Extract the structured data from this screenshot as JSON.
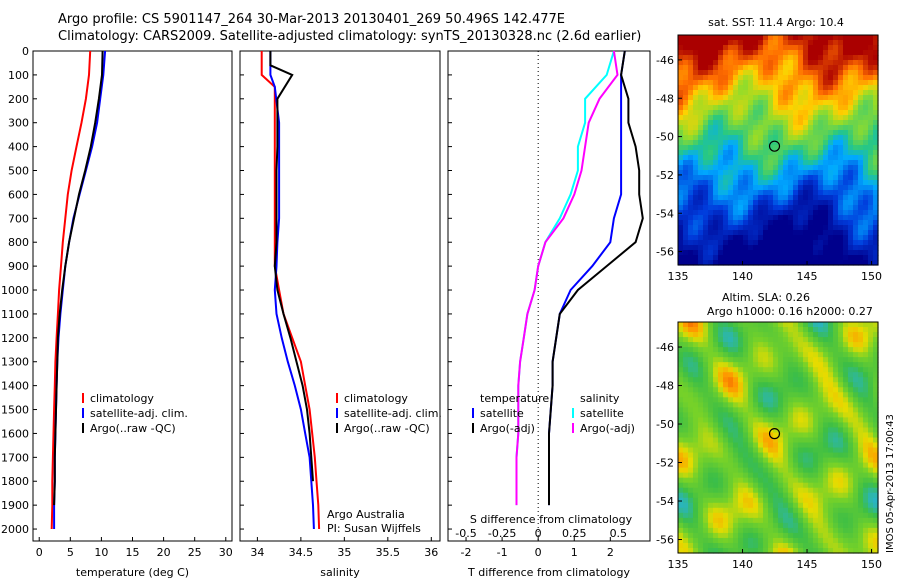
{
  "header": {
    "line1": "Argo profile: CS 5901147_264 30-Mar-2013 20130401_269 50.496S 142.477E",
    "line2": "Climatology: CARS2009. Satellite-adjusted climatology: synTS_20130328.nc (2.6d earlier)"
  },
  "colors": {
    "red": "#ff0000",
    "blue": "#0000ff",
    "black": "#000000",
    "cyan": "#00ffff",
    "magenta": "#ff00ff"
  },
  "chart_data": [
    {
      "type": "line",
      "xlabel": "temperature (deg C)",
      "xlim": [
        -1,
        31
      ],
      "xticks": [
        "0",
        "5",
        "10",
        "15",
        "20",
        "25",
        "30"
      ],
      "yticks": [
        "0",
        "100",
        "200",
        "300",
        "400",
        "500",
        "600",
        "700",
        "800",
        "900",
        "1000",
        "1100",
        "1200",
        "1300",
        "1400",
        "1500",
        "1600",
        "1700",
        "1800",
        "1900",
        "2000"
      ],
      "ylim": [
        0,
        2050
      ],
      "legend": [
        "climatology",
        "satellite-adj. clim.",
        "Argo(..raw -QC)"
      ],
      "series": [
        {
          "name": "climatology",
          "color": "red",
          "x": [
            8.2,
            8.0,
            7.5,
            6.8,
            6.0,
            5.2,
            4.6,
            4.2,
            3.8,
            3.5,
            3.2,
            3.0,
            2.8,
            2.6,
            2.5,
            2.4,
            2.3,
            2.2,
            2.1,
            2.1,
            2.0
          ],
          "y": [
            0,
            100,
            200,
            300,
            400,
            500,
            600,
            700,
            800,
            900,
            1000,
            1100,
            1200,
            1300,
            1400,
            1500,
            1600,
            1700,
            1800,
            1900,
            2000
          ]
        },
        {
          "name": "satellite-adj. clim.",
          "color": "blue",
          "x": [
            10.6,
            10.3,
            9.8,
            9.3,
            8.5,
            7.5,
            6.5,
            5.5,
            4.8,
            4.2,
            3.8,
            3.4,
            3.1,
            2.9,
            2.8,
            2.7,
            2.6,
            2.5,
            2.5,
            2.4,
            2.4
          ],
          "y": [
            0,
            100,
            200,
            300,
            400,
            500,
            600,
            700,
            800,
            900,
            1000,
            1100,
            1200,
            1300,
            1400,
            1500,
            1600,
            1700,
            1800,
            1900,
            2000
          ]
        },
        {
          "name": "Argo(..raw -QC)",
          "color": "black",
          "x": [
            10.2,
            10.1,
            9.6,
            9.0,
            8.3,
            7.4,
            6.4,
            5.6,
            4.8,
            4.2,
            3.7,
            3.3,
            3.0,
            2.9,
            2.8,
            2.7,
            2.6,
            2.5,
            2.5,
            2.4
          ],
          "y": [
            0,
            100,
            200,
            300,
            400,
            500,
            600,
            700,
            800,
            900,
            1000,
            1100,
            1200,
            1300,
            1400,
            1500,
            1600,
            1700,
            1800,
            1900
          ]
        }
      ]
    },
    {
      "type": "line",
      "xlabel": "salinity",
      "xlim": [
        33.8,
        36.1
      ],
      "xticks": [
        "34",
        "34.5",
        "35",
        "35.5",
        "36"
      ],
      "ylim": [
        0,
        2050
      ],
      "legend": [
        "climatology",
        "satellite-adj. clim.",
        "Argo(..raw -QC)"
      ],
      "annotation": [
        "Argo Australia",
        "PI: Susan Wijffels"
      ],
      "series": [
        {
          "name": "climatology",
          "color": "red",
          "x": [
            34.05,
            34.05,
            34.2,
            34.2,
            34.2,
            34.2,
            34.2,
            34.2,
            34.2,
            34.2,
            34.25,
            34.3,
            34.4,
            34.5,
            34.55,
            34.6,
            34.63,
            34.66,
            34.68,
            34.7,
            34.71
          ],
          "y": [
            0,
            100,
            150,
            300,
            400,
            500,
            600,
            700,
            800,
            900,
            1000,
            1100,
            1200,
            1300,
            1400,
            1500,
            1600,
            1700,
            1800,
            1900,
            2000
          ]
        },
        {
          "name": "satellite-adj. clim.",
          "color": "blue",
          "x": [
            34.15,
            34.15,
            34.2,
            34.25,
            34.25,
            34.25,
            34.25,
            34.25,
            34.23,
            34.22,
            34.2,
            34.22,
            34.28,
            34.35,
            34.43,
            34.5,
            34.55,
            34.6,
            34.62,
            34.64,
            34.65
          ],
          "y": [
            0,
            100,
            150,
            300,
            400,
            500,
            600,
            700,
            800,
            900,
            1000,
            1100,
            1200,
            1300,
            1400,
            1500,
            1600,
            1700,
            1800,
            1900,
            2000
          ]
        },
        {
          "name": "Argo(..raw -QC)",
          "color": "black",
          "x": [
            34.15,
            34.15,
            34.4,
            34.23,
            34.23,
            34.23,
            34.22,
            34.22,
            34.22,
            34.22,
            34.2,
            34.23,
            34.3,
            34.38,
            34.45,
            34.52,
            34.57,
            34.6,
            34.62,
            34.64
          ],
          "y": [
            0,
            60,
            100,
            200,
            300,
            400,
            500,
            600,
            700,
            800,
            900,
            1000,
            1100,
            1200,
            1300,
            1400,
            1500,
            1600,
            1700,
            1800
          ]
        }
      ]
    },
    {
      "type": "line",
      "xlabel": "T difference from climatology",
      "xlabel2": "S difference from climatology",
      "xlim": [
        -2.5,
        3.1
      ],
      "xticks": [
        "-2",
        "-1",
        "0",
        "1",
        "2"
      ],
      "xticks2": [
        "-0.5",
        "-0.25",
        "0",
        "0.25",
        "0.5"
      ],
      "ylim": [
        0,
        2050
      ],
      "legend_temperature": [
        "temperature",
        "satellite",
        "Argo(-adj)"
      ],
      "legend_salinity": [
        "salinity",
        "satellite",
        "Argo(-adj)"
      ],
      "series": [
        {
          "name": "satellite",
          "color": "blue",
          "x": [
            2.4,
            2.3,
            2.3,
            2.3,
            2.3,
            2.3,
            2.3,
            2.1,
            2.0,
            1.5,
            0.9,
            0.6,
            0.5,
            0.4,
            0.4,
            0.35,
            0.3,
            0.3,
            0.3,
            0.3
          ],
          "y": [
            0,
            100,
            200,
            300,
            400,
            500,
            600,
            700,
            800,
            900,
            1000,
            1100,
            1200,
            1300,
            1400,
            1500,
            1600,
            1700,
            1800,
            1900
          ]
        },
        {
          "name": "Argo(-adj)",
          "color": "black",
          "x": [
            2.4,
            2.3,
            2.5,
            2.5,
            2.7,
            2.8,
            2.8,
            2.9,
            2.7,
            1.9,
            1.1,
            0.6,
            0.5,
            0.4,
            0.4,
            0.35,
            0.3,
            0.3,
            0.3,
            0.3
          ],
          "y": [
            0,
            100,
            200,
            300,
            400,
            500,
            600,
            700,
            800,
            900,
            1000,
            1100,
            1200,
            1300,
            1400,
            1500,
            1600,
            1700,
            1800,
            1900
          ]
        },
        {
          "name": "satellite",
          "color": "cyan",
          "x": [
            2.1,
            1.9,
            1.3,
            1.3,
            1.1,
            1.1,
            0.9,
            0.6,
            0.2,
            0.0,
            -0.1,
            -0.3,
            -0.4,
            -0.5,
            -0.55,
            -0.55,
            -0.55,
            -0.6,
            -0.6,
            -0.6
          ],
          "y": [
            0,
            100,
            200,
            300,
            400,
            500,
            600,
            700,
            800,
            900,
            1000,
            1100,
            1200,
            1300,
            1400,
            1500,
            1600,
            1700,
            1800,
            1900
          ]
        },
        {
          "name": "Argo(-adj)",
          "color": "magenta",
          "x": [
            2.1,
            2.2,
            1.7,
            1.4,
            1.3,
            1.2,
            1.0,
            0.7,
            0.2,
            0.0,
            -0.1,
            -0.3,
            -0.4,
            -0.5,
            -0.55,
            -0.55,
            -0.55,
            -0.6,
            -0.6,
            -0.6
          ],
          "y": [
            0,
            100,
            200,
            300,
            400,
            500,
            600,
            700,
            800,
            900,
            1000,
            1100,
            1200,
            1300,
            1400,
            1500,
            1600,
            1700,
            1800,
            1900
          ]
        }
      ]
    },
    {
      "type": "heatmap",
      "title": "sat. SST: 11.4 Argo: 10.4",
      "xticks": [
        "135",
        "140",
        "145",
        "150"
      ],
      "yticks": [
        "-46",
        "-48",
        "-50",
        "-52",
        "-54",
        "-56"
      ],
      "xlim": [
        135,
        150.5
      ],
      "ylim": [
        -56.7,
        -44.7
      ],
      "marker": {
        "lon": 142.48,
        "lat": -50.5
      }
    },
    {
      "type": "heatmap",
      "title": "Altim. SLA: 0.26",
      "subtitle": "Argo h1000: 0.16 h2000: 0.27",
      "xticks": [
        "135",
        "140",
        "145",
        "150"
      ],
      "yticks": [
        "-46",
        "-48",
        "-50",
        "-52",
        "-54",
        "-56"
      ],
      "xlim": [
        135,
        150.5
      ],
      "ylim": [
        -56.7,
        -44.7
      ],
      "marker": {
        "lon": 142.48,
        "lat": -50.5
      }
    }
  ],
  "footer": {
    "stamp": "IMOS 05-Apr-2013 17:00:43"
  }
}
